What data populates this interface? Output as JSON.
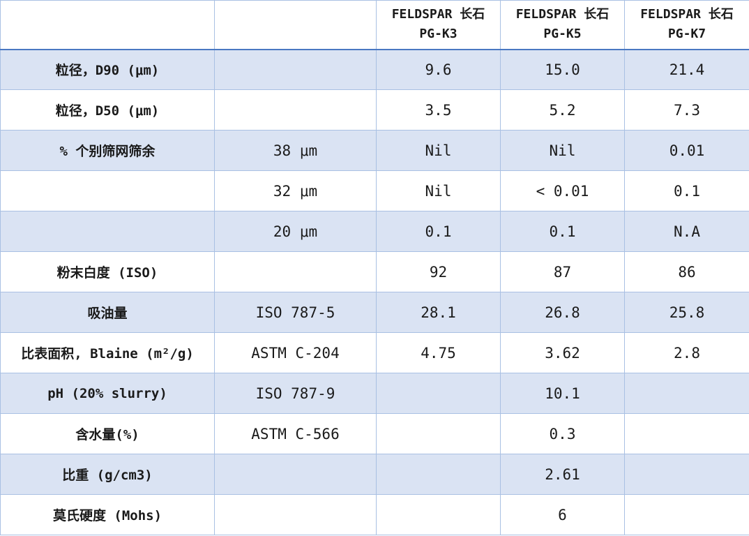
{
  "header": {
    "blank_1": "",
    "blank_2": "",
    "products": [
      {
        "name": "FELDSPAR 长石",
        "code": "PG-K3"
      },
      {
        "name": "FELDSPAR 长石",
        "code": "PG-K5"
      },
      {
        "name": "FELDSPAR 长石",
        "code": "PG-K7"
      }
    ]
  },
  "rows": [
    {
      "property": "粒径，D90 (μm)",
      "method": "",
      "values": [
        "9.6",
        "15.0",
        "21.4"
      ]
    },
    {
      "property": "粒径，D50 (μm)",
      "method": "",
      "values": [
        "3.5",
        "5.2",
        "7.3"
      ]
    },
    {
      "property": "% 个别筛网筛余",
      "method": "38 μm",
      "values": [
        "Nil",
        "Nil",
        "0.01"
      ]
    },
    {
      "property": "",
      "method": "32 μm",
      "values": [
        "Nil",
        "< 0.01",
        "0.1"
      ]
    },
    {
      "property": "",
      "method": "20 μm",
      "values": [
        "0.1",
        "0.1",
        "N.A"
      ]
    },
    {
      "property": "粉末白度 (ISO)",
      "method": "",
      "values": [
        "92",
        "87",
        "86"
      ]
    },
    {
      "property": "吸油量",
      "method": "ISO 787-5",
      "values": [
        "28.1",
        "26.8",
        "25.8"
      ]
    },
    {
      "property": "比表面积, Blaine (m²/g)",
      "method": "ASTM C-204",
      "values": [
        "4.75",
        "3.62",
        "2.8"
      ]
    },
    {
      "property": "pH (20% slurry)",
      "method": "ISO 787-9",
      "values": [
        "",
        "10.1",
        ""
      ]
    },
    {
      "property": "含水量(%)",
      "method": "ASTM C-566",
      "values": [
        "",
        "0.3",
        ""
      ]
    },
    {
      "property": "比重 (g/cm3)",
      "method": "",
      "values": [
        "",
        "2.61",
        ""
      ]
    },
    {
      "property": "莫氏硬度 (Mohs)",
      "method": "",
      "values": [
        "",
        "6",
        ""
      ]
    }
  ],
  "colors": {
    "shaded_row": "#dae3f3",
    "plain_row": "#ffffff",
    "grid_line": "#a9c0e3",
    "header_rule": "#4a78c2"
  }
}
